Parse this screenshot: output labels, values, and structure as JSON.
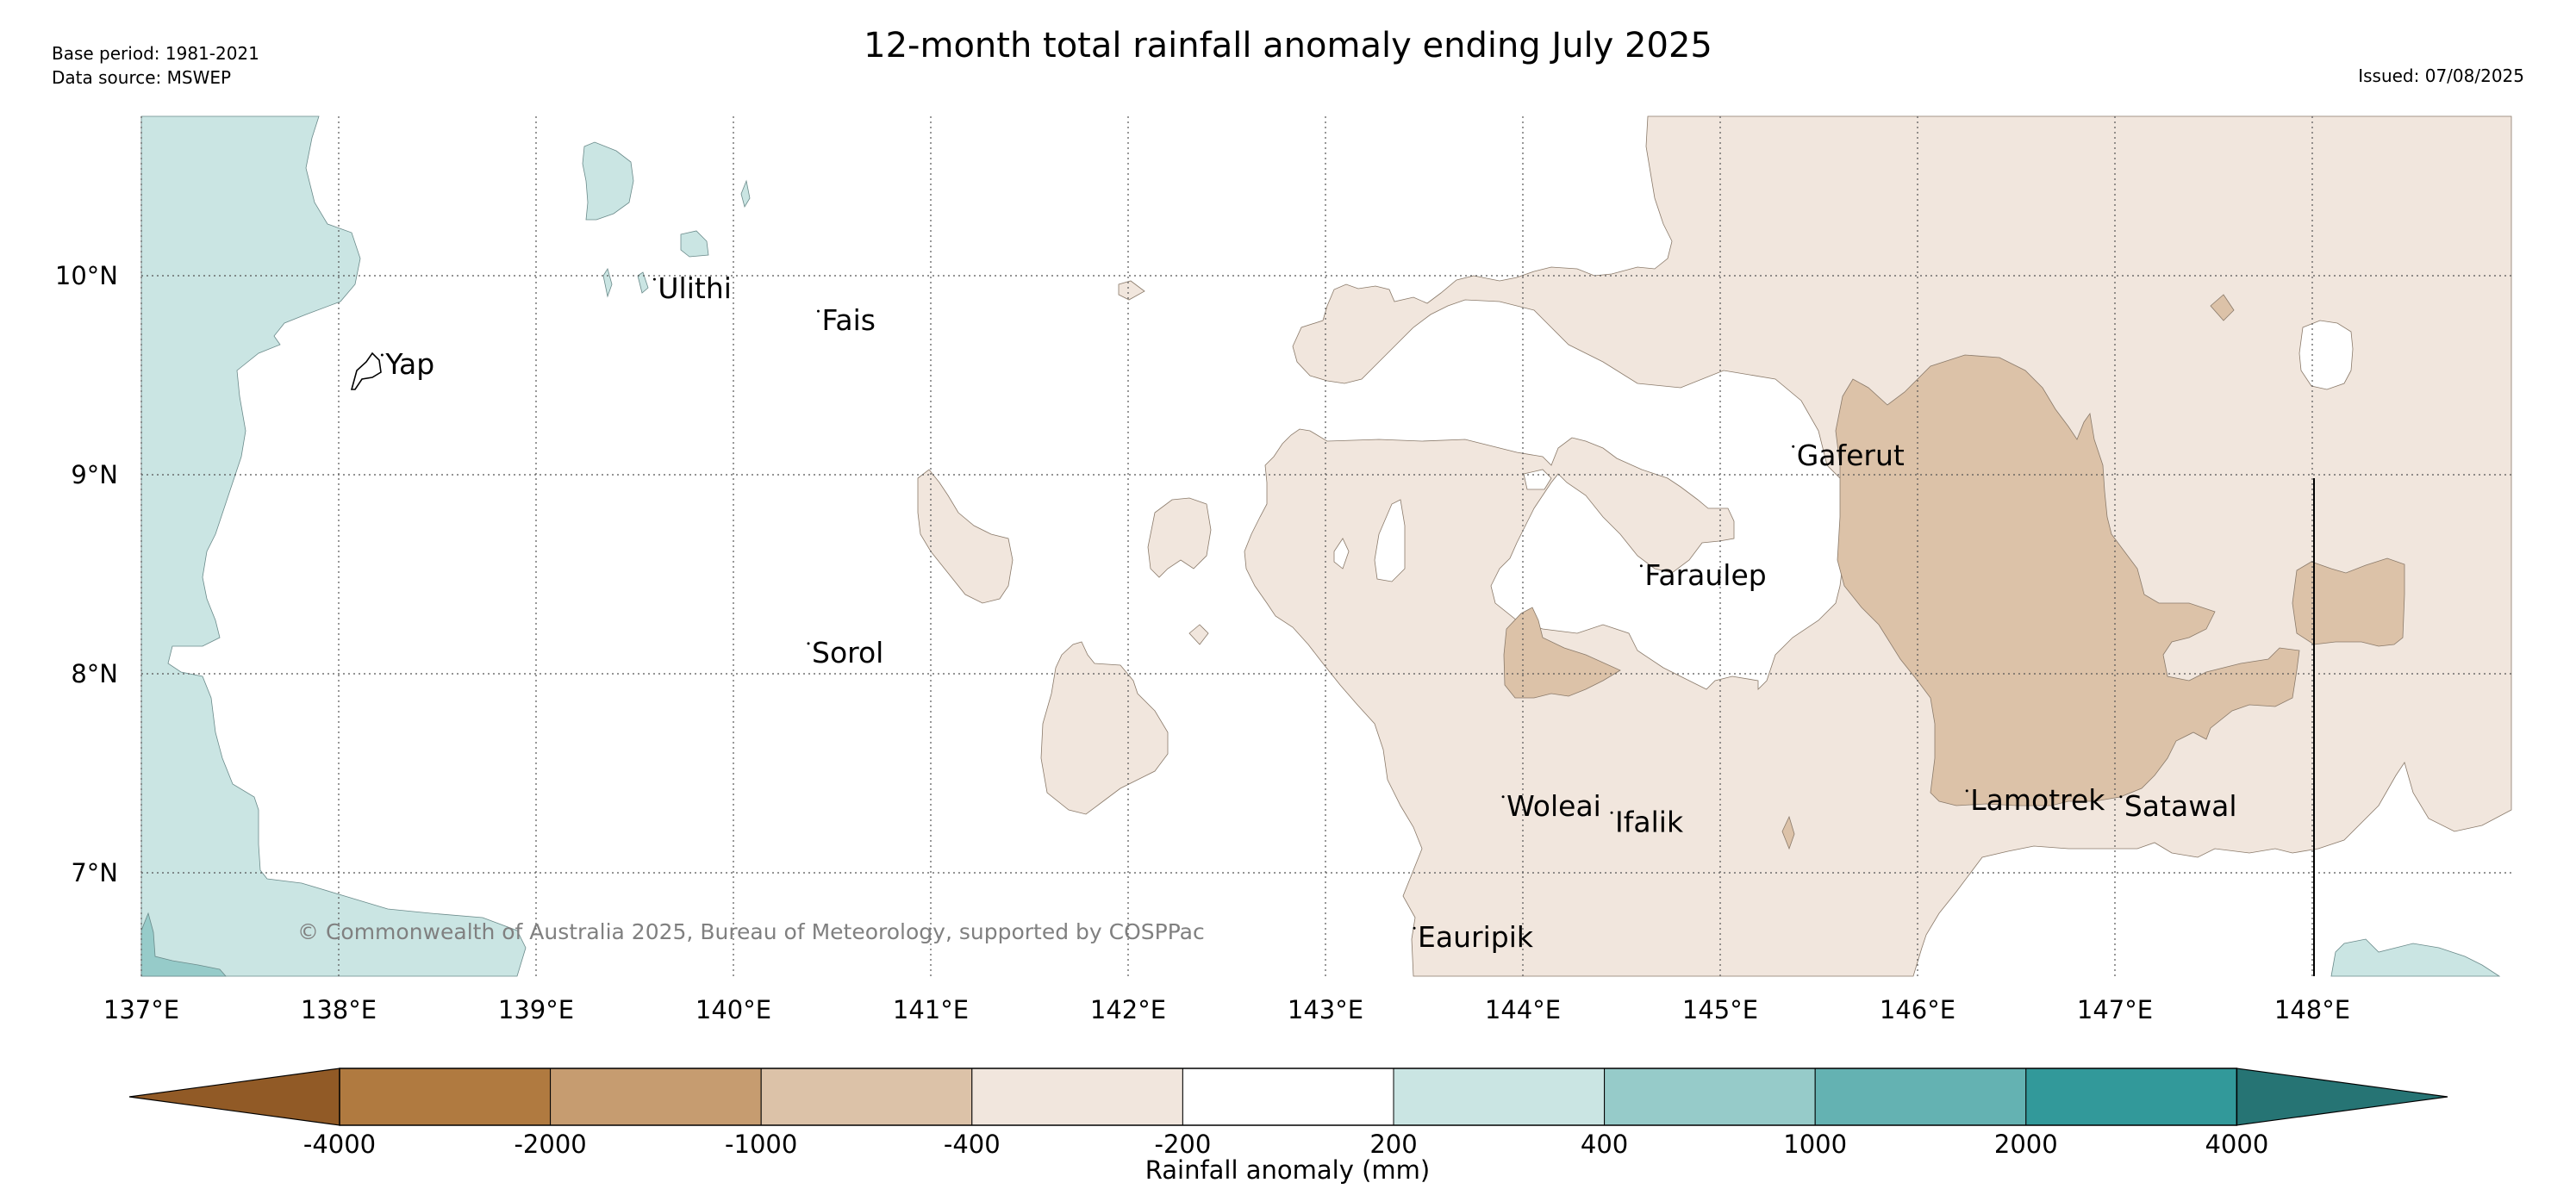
{
  "header": {
    "title": "12-month total rainfall anomaly ending July 2025",
    "base_period": "Base period: 1981-2021",
    "data_source": "Data source: MSWEP",
    "issued": "Issued: 07/08/2025"
  },
  "copyright": "© Commonwealth of Australia 2025, Bureau of Meteorology, supported by COSPPac",
  "map": {
    "lon_range": [
      137,
      149
    ],
    "lat_range": [
      6.5,
      10.8
    ],
    "lon_ticks": [
      {
        "value": 137,
        "label": "137°E"
      },
      {
        "value": 138,
        "label": "138°E"
      },
      {
        "value": 139,
        "label": "139°E"
      },
      {
        "value": 140,
        "label": "140°E"
      },
      {
        "value": 141,
        "label": "141°E"
      },
      {
        "value": 142,
        "label": "142°E"
      },
      {
        "value": 143,
        "label": "143°E"
      },
      {
        "value": 144,
        "label": "144°E"
      },
      {
        "value": 145,
        "label": "145°E"
      },
      {
        "value": 146,
        "label": "146°E"
      },
      {
        "value": 147,
        "label": "147°E"
      },
      {
        "value": 148,
        "label": "148°E"
      }
    ],
    "lat_ticks": [
      {
        "value": 10,
        "label": "10°N"
      },
      {
        "value": 9,
        "label": "9°N"
      },
      {
        "value": 8,
        "label": "8°N"
      },
      {
        "value": 7,
        "label": "7°N"
      }
    ],
    "places": [
      {
        "name": "Yap",
        "lon": 138.22,
        "lat": 9.55
      },
      {
        "name": "Ulithi",
        "lon": 139.6,
        "lat": 9.93
      },
      {
        "name": "Fais",
        "lon": 140.43,
        "lat": 9.77
      },
      {
        "name": "Gaferut",
        "lon": 145.37,
        "lat": 9.09
      },
      {
        "name": "Faraulep",
        "lon": 144.6,
        "lat": 8.49
      },
      {
        "name": "Sorol",
        "lon": 140.38,
        "lat": 8.1
      },
      {
        "name": "Woleai",
        "lon": 143.9,
        "lat": 7.33
      },
      {
        "name": "Ifalik",
        "lon": 144.45,
        "lat": 7.25
      },
      {
        "name": "Lamotrek",
        "lon": 146.25,
        "lat": 7.36
      },
      {
        "name": "Satawal",
        "lon": 147.03,
        "lat": 7.33
      },
      {
        "name": "Eauripik",
        "lon": 143.45,
        "lat": 6.67
      }
    ]
  },
  "legend": {
    "title": "Rainfall anomaly (mm)",
    "bins": [
      {
        "label": "-4000",
        "color": "#b07a40"
      },
      {
        "label": "-2000",
        "color": "#c69c70"
      },
      {
        "label": "-1000",
        "color": "#dcc2a8"
      },
      {
        "label": "-400",
        "color": "#f1e6dd"
      },
      {
        "label": "-200",
        "color": "#ffffff"
      },
      {
        "label": "200",
        "color": "#cae5e3"
      },
      {
        "label": "400",
        "color": "#96cbc9"
      },
      {
        "label": "1000",
        "color": "#64b2b2"
      },
      {
        "label": "2000",
        "color": "#32999a"
      }
    ],
    "last_label": "4000",
    "low_extend_color": "#915a26",
    "high_extend_color": "#267474"
  }
}
